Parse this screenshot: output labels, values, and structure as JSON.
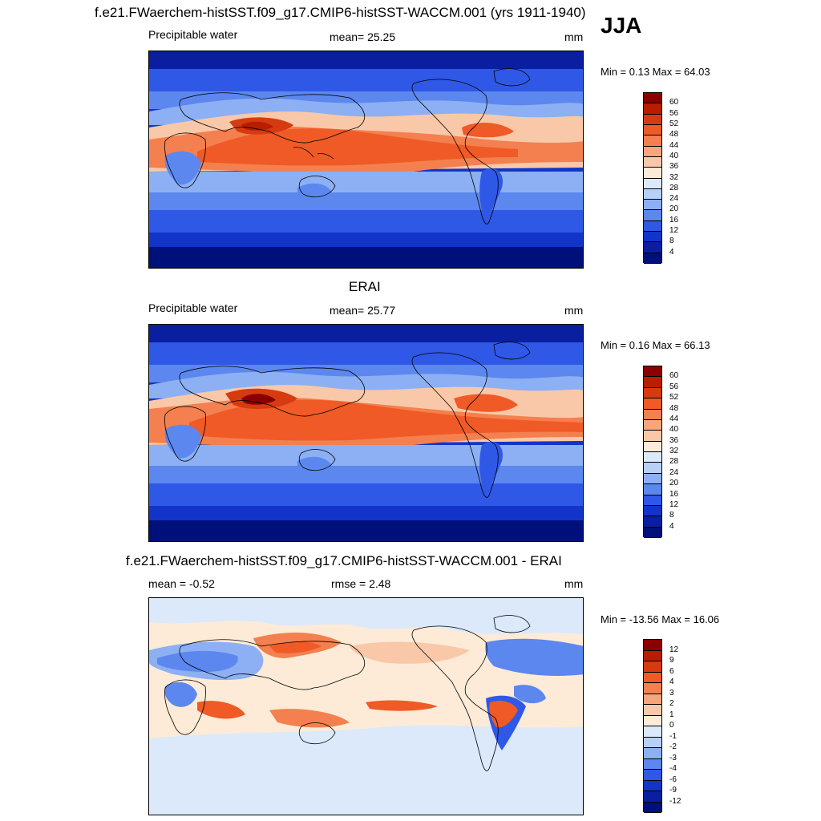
{
  "season": "JJA",
  "panels": [
    {
      "id": "model",
      "title": "f.e21.FWaerchem-histSST.f09_g17.CMIP6-histSST-WACCM.001 (yrs 1911-1940)",
      "left_label": "Precipitable water",
      "center_label": "mean=  25.25",
      "units": "mm",
      "minmax": "Min =   0.13 Max =  64.03",
      "colorbar_labels": [
        "60",
        "56",
        "52",
        "48",
        "44",
        "40",
        "36",
        "32",
        "28",
        "24",
        "20",
        "16",
        "12",
        "8",
        "4"
      ]
    },
    {
      "id": "obs",
      "title": "ERAI",
      "left_label": "Precipitable water",
      "center_label": "mean=  25.77",
      "units": "mm",
      "minmax": "Min =   0.16 Max =  66.13",
      "colorbar_labels": [
        "60",
        "56",
        "52",
        "48",
        "44",
        "40",
        "36",
        "32",
        "28",
        "24",
        "20",
        "16",
        "12",
        "8",
        "4"
      ]
    },
    {
      "id": "diff",
      "title": "f.e21.FWaerchem-histSST.f09_g17.CMIP6-histSST-WACCM.001 - ERAI",
      "left_label": "mean =  -0.52",
      "center_label": "rmse =    2.48",
      "units": "mm",
      "minmax": "Min = -13.56 Max =  16.06",
      "colorbar_labels": [
        "12",
        "9",
        "6",
        "4",
        "3",
        "2",
        "1",
        "0",
        "-1",
        "-2",
        "-3",
        "-4",
        "-6",
        "-9",
        "-12"
      ]
    }
  ],
  "colors": {
    "scale": [
      "#8a0000",
      "#b81d00",
      "#d63a10",
      "#ef5a26",
      "#f4804f",
      "#f7a57c",
      "#f9c8a8",
      "#fdebd7",
      "#dbe9fb",
      "#b7d0f8",
      "#8cb0f3",
      "#5c87ee",
      "#2f58e6",
      "#1234c9",
      "#0a1fa0",
      "#00107a"
    ],
    "diff_scale": [
      "#8a0000",
      "#b81d00",
      "#d63a10",
      "#ef5a26",
      "#f4804f",
      "#f7a57c",
      "#f9c8a8",
      "#fdebd7",
      "#dbe9fb",
      "#b7d0f8",
      "#8cb0f3",
      "#5c87ee",
      "#2f58e6",
      "#1234c9",
      "#0a1fa0",
      "#00107a"
    ]
  }
}
